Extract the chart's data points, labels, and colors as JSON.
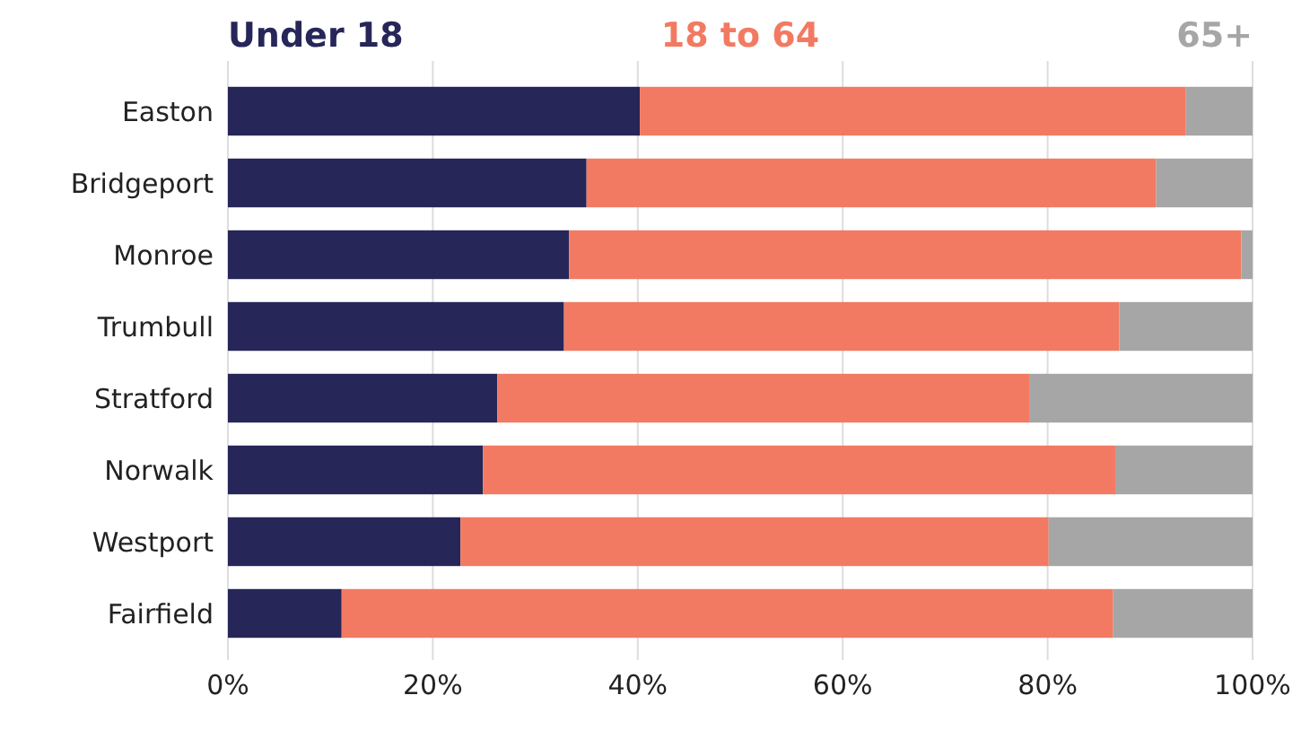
{
  "chart_data": {
    "type": "bar",
    "orientation": "horizontal",
    "stacked": true,
    "categories": [
      "Easton",
      "Bridgeport",
      "Monroe",
      "Trumbull",
      "Stratford",
      "Norwalk",
      "Westport",
      "Fairfield"
    ],
    "series": [
      {
        "name": "Under 18",
        "color": "#262659",
        "values": [
          40.2,
          35.0,
          33.3,
          32.8,
          26.3,
          24.9,
          22.7,
          11.1
        ]
      },
      {
        "name": "18 to 64",
        "color": "#f27a62",
        "values": [
          53.3,
          55.6,
          65.6,
          54.2,
          51.9,
          61.7,
          57.4,
          75.3
        ]
      },
      {
        "name": "65+",
        "color": "#a6a6a6",
        "values": [
          6.5,
          9.4,
          1.1,
          13.0,
          21.8,
          13.4,
          19.9,
          13.6
        ]
      }
    ],
    "xlim": [
      0,
      100
    ],
    "xticks": [
      {
        "value": 0,
        "label": "0%"
      },
      {
        "value": 20,
        "label": "20%"
      },
      {
        "value": 40,
        "label": "40%"
      },
      {
        "value": 60,
        "label": "60%"
      },
      {
        "value": 80,
        "label": "80%"
      },
      {
        "value": 100,
        "label": "100%"
      }
    ],
    "grid": "x",
    "legend": "top"
  }
}
